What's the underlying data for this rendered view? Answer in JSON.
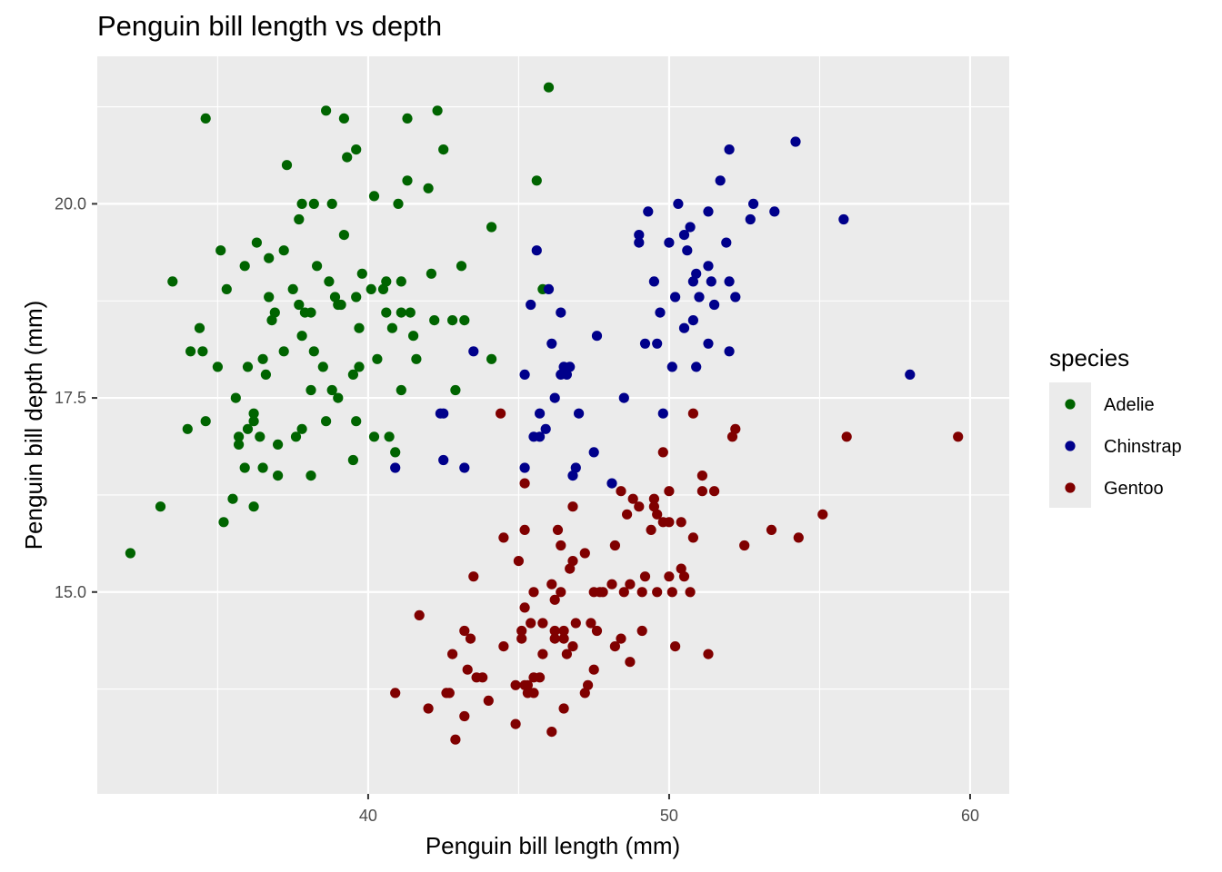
{
  "chart_data": {
    "type": "scatter",
    "title": "Penguin bill length vs depth",
    "xlabel": "Penguin bill length (mm)",
    "ylabel": "Penguin bill depth (mm)",
    "xlim": [
      31,
      61.3
    ],
    "ylim": [
      12.4,
      21.9
    ],
    "x_ticks": [
      40,
      50,
      60
    ],
    "x_tick_labels": [
      "40",
      "50",
      "60"
    ],
    "y_ticks": [
      15.0,
      17.5,
      20.0
    ],
    "y_tick_labels": [
      "15.0",
      "17.5",
      "20.0"
    ],
    "grid": true,
    "legend": {
      "title": "species",
      "placement": "right"
    },
    "series": [
      {
        "name": "Adelie",
        "color": "#006400",
        "points": [
          [
            32.1,
            15.5
          ],
          [
            33.1,
            16.1
          ],
          [
            33.5,
            19.0
          ],
          [
            34.0,
            17.1
          ],
          [
            34.1,
            18.1
          ],
          [
            34.4,
            18.4
          ],
          [
            34.5,
            18.1
          ],
          [
            34.6,
            21.1
          ],
          [
            34.6,
            17.2
          ],
          [
            35.0,
            17.9
          ],
          [
            35.1,
            19.4
          ],
          [
            35.2,
            15.9
          ],
          [
            35.3,
            18.9
          ],
          [
            35.5,
            16.2
          ],
          [
            35.6,
            17.5
          ],
          [
            35.7,
            17.0
          ],
          [
            35.7,
            16.9
          ],
          [
            35.9,
            16.6
          ],
          [
            35.9,
            19.2
          ],
          [
            36.0,
            17.9
          ],
          [
            36.0,
            17.1
          ],
          [
            36.2,
            16.1
          ],
          [
            36.2,
            17.2
          ],
          [
            36.2,
            17.3
          ],
          [
            36.3,
            19.5
          ],
          [
            36.4,
            17.0
          ],
          [
            36.5,
            18.0
          ],
          [
            36.5,
            16.6
          ],
          [
            36.6,
            17.8
          ],
          [
            36.7,
            18.8
          ],
          [
            36.7,
            19.3
          ],
          [
            36.8,
            18.5
          ],
          [
            36.9,
            18.6
          ],
          [
            37.0,
            16.9
          ],
          [
            37.0,
            16.5
          ],
          [
            37.2,
            18.1
          ],
          [
            37.2,
            19.4
          ],
          [
            37.3,
            20.5
          ],
          [
            37.5,
            18.9
          ],
          [
            37.6,
            17.0
          ],
          [
            37.7,
            18.7
          ],
          [
            37.7,
            19.8
          ],
          [
            37.8,
            17.1
          ],
          [
            37.8,
            18.3
          ],
          [
            37.8,
            20.0
          ],
          [
            37.9,
            18.6
          ],
          [
            38.1,
            18.6
          ],
          [
            38.1,
            17.6
          ],
          [
            38.1,
            16.5
          ],
          [
            38.2,
            20.0
          ],
          [
            38.2,
            18.1
          ],
          [
            38.3,
            19.2
          ],
          [
            38.5,
            17.9
          ],
          [
            38.6,
            21.2
          ],
          [
            38.6,
            17.2
          ],
          [
            38.7,
            19.0
          ],
          [
            38.8,
            20.0
          ],
          [
            38.8,
            17.6
          ],
          [
            38.9,
            18.8
          ],
          [
            39.0,
            17.5
          ],
          [
            39.0,
            18.7
          ],
          [
            39.1,
            18.7
          ],
          [
            39.2,
            19.6
          ],
          [
            39.2,
            21.1
          ],
          [
            39.3,
            20.6
          ],
          [
            39.5,
            16.7
          ],
          [
            39.5,
            17.8
          ],
          [
            39.6,
            20.7
          ],
          [
            39.6,
            18.8
          ],
          [
            39.6,
            17.2
          ],
          [
            39.7,
            18.4
          ],
          [
            39.7,
            17.9
          ],
          [
            39.8,
            19.1
          ],
          [
            40.1,
            18.9
          ],
          [
            40.2,
            17.0
          ],
          [
            40.2,
            20.1
          ],
          [
            40.3,
            18.0
          ],
          [
            40.5,
            18.9
          ],
          [
            40.6,
            19.0
          ],
          [
            40.6,
            18.6
          ],
          [
            40.7,
            17.0
          ],
          [
            40.8,
            18.4
          ],
          [
            40.9,
            16.8
          ],
          [
            41.0,
            20.0
          ],
          [
            41.1,
            19.0
          ],
          [
            41.1,
            18.6
          ],
          [
            41.1,
            17.6
          ],
          [
            41.3,
            20.3
          ],
          [
            41.3,
            21.1
          ],
          [
            41.4,
            18.6
          ],
          [
            41.5,
            18.3
          ],
          [
            41.6,
            18.0
          ],
          [
            42.0,
            20.2
          ],
          [
            42.1,
            19.1
          ],
          [
            42.2,
            18.5
          ],
          [
            42.3,
            21.2
          ],
          [
            42.5,
            20.7
          ],
          [
            42.8,
            18.5
          ],
          [
            42.9,
            17.6
          ],
          [
            43.1,
            19.2
          ],
          [
            43.2,
            18.5
          ],
          [
            44.1,
            19.7
          ],
          [
            44.1,
            18.0
          ],
          [
            45.6,
            20.3
          ],
          [
            46.0,
            21.5
          ],
          [
            45.8,
            18.9
          ]
        ]
      },
      {
        "name": "Chinstrap",
        "color": "#00008B",
        "points": [
          [
            40.9,
            16.6
          ],
          [
            42.4,
            17.3
          ],
          [
            42.5,
            16.7
          ],
          [
            42.5,
            17.3
          ],
          [
            43.2,
            16.6
          ],
          [
            43.5,
            18.1
          ],
          [
            45.2,
            17.8
          ],
          [
            45.2,
            16.6
          ],
          [
            45.4,
            18.7
          ],
          [
            45.5,
            17.0
          ],
          [
            45.6,
            19.4
          ],
          [
            45.7,
            17.3
          ],
          [
            45.7,
            17.0
          ],
          [
            45.9,
            17.1
          ],
          [
            46.0,
            18.9
          ],
          [
            46.1,
            18.2
          ],
          [
            46.2,
            17.5
          ],
          [
            46.4,
            18.6
          ],
          [
            46.4,
            17.8
          ],
          [
            46.5,
            17.9
          ],
          [
            46.6,
            17.8
          ],
          [
            46.7,
            17.9
          ],
          [
            46.8,
            16.5
          ],
          [
            46.9,
            16.6
          ],
          [
            47.0,
            17.3
          ],
          [
            47.5,
            16.8
          ],
          [
            47.6,
            18.3
          ],
          [
            48.1,
            16.4
          ],
          [
            48.5,
            17.5
          ],
          [
            49.0,
            19.5
          ],
          [
            49.0,
            19.6
          ],
          [
            49.2,
            18.2
          ],
          [
            49.3,
            19.9
          ],
          [
            49.5,
            19.0
          ],
          [
            49.6,
            18.2
          ],
          [
            49.7,
            18.6
          ],
          [
            49.8,
            17.3
          ],
          [
            50.0,
            19.5
          ],
          [
            50.1,
            17.9
          ],
          [
            50.2,
            18.8
          ],
          [
            50.3,
            20.0
          ],
          [
            50.5,
            18.4
          ],
          [
            50.5,
            19.6
          ],
          [
            50.6,
            19.4
          ],
          [
            50.7,
            19.7
          ],
          [
            50.8,
            18.5
          ],
          [
            50.8,
            19.0
          ],
          [
            50.9,
            19.1
          ],
          [
            50.9,
            17.9
          ],
          [
            51.0,
            18.8
          ],
          [
            51.3,
            18.2
          ],
          [
            51.3,
            19.2
          ],
          [
            51.3,
            19.9
          ],
          [
            51.4,
            19.0
          ],
          [
            51.5,
            18.7
          ],
          [
            51.7,
            20.3
          ],
          [
            51.9,
            19.5
          ],
          [
            52.0,
            18.1
          ],
          [
            52.0,
            19.0
          ],
          [
            52.0,
            20.7
          ],
          [
            52.2,
            18.8
          ],
          [
            52.7,
            19.8
          ],
          [
            52.8,
            20.0
          ],
          [
            53.5,
            19.9
          ],
          [
            54.2,
            20.8
          ],
          [
            55.8,
            19.8
          ],
          [
            58.0,
            17.8
          ]
        ]
      },
      {
        "name": "Gentoo",
        "color": "#800000",
        "points": [
          [
            40.9,
            13.7
          ],
          [
            41.7,
            14.7
          ],
          [
            42.0,
            13.5
          ],
          [
            42.6,
            13.7
          ],
          [
            42.7,
            13.7
          ],
          [
            42.8,
            14.2
          ],
          [
            42.9,
            13.1
          ],
          [
            43.2,
            14.5
          ],
          [
            43.2,
            13.4
          ],
          [
            43.3,
            14.0
          ],
          [
            43.4,
            14.4
          ],
          [
            43.5,
            15.2
          ],
          [
            43.6,
            13.9
          ],
          [
            43.8,
            13.9
          ],
          [
            44.0,
            13.6
          ],
          [
            44.4,
            17.3
          ],
          [
            44.5,
            15.7
          ],
          [
            44.5,
            14.3
          ],
          [
            44.9,
            13.3
          ],
          [
            44.9,
            13.8
          ],
          [
            45.0,
            15.4
          ],
          [
            45.1,
            14.5
          ],
          [
            45.1,
            14.4
          ],
          [
            45.2,
            13.8
          ],
          [
            45.2,
            15.8
          ],
          [
            45.2,
            16.4
          ],
          [
            45.2,
            14.8
          ],
          [
            45.3,
            13.7
          ],
          [
            45.3,
            13.8
          ],
          [
            45.4,
            14.6
          ],
          [
            45.5,
            13.9
          ],
          [
            45.5,
            13.7
          ],
          [
            45.5,
            15.0
          ],
          [
            45.7,
            13.9
          ],
          [
            45.8,
            14.6
          ],
          [
            45.8,
            14.2
          ],
          [
            46.1,
            13.2
          ],
          [
            46.1,
            15.1
          ],
          [
            46.2,
            14.5
          ],
          [
            46.2,
            14.9
          ],
          [
            46.2,
            14.4
          ],
          [
            46.3,
            15.8
          ],
          [
            46.4,
            15.6
          ],
          [
            46.4,
            15.0
          ],
          [
            46.5,
            14.5
          ],
          [
            46.5,
            14.4
          ],
          [
            46.5,
            13.5
          ],
          [
            46.6,
            14.2
          ],
          [
            46.7,
            15.3
          ],
          [
            46.8,
            14.3
          ],
          [
            46.8,
            15.4
          ],
          [
            46.8,
            16.1
          ],
          [
            46.9,
            14.6
          ],
          [
            47.2,
            13.7
          ],
          [
            47.2,
            15.5
          ],
          [
            47.3,
            13.8
          ],
          [
            47.4,
            14.6
          ],
          [
            47.5,
            14.0
          ],
          [
            47.5,
            15.0
          ],
          [
            47.6,
            14.5
          ],
          [
            47.7,
            15.0
          ],
          [
            47.8,
            15.0
          ],
          [
            48.1,
            15.1
          ],
          [
            48.2,
            14.3
          ],
          [
            48.2,
            15.6
          ],
          [
            48.4,
            14.4
          ],
          [
            48.4,
            16.3
          ],
          [
            48.5,
            15.0
          ],
          [
            48.6,
            16.0
          ],
          [
            48.7,
            14.1
          ],
          [
            48.7,
            15.1
          ],
          [
            48.8,
            16.2
          ],
          [
            49.0,
            16.1
          ],
          [
            49.1,
            14.5
          ],
          [
            49.1,
            15.0
          ],
          [
            49.2,
            15.2
          ],
          [
            49.4,
            15.8
          ],
          [
            49.5,
            16.2
          ],
          [
            49.5,
            16.1
          ],
          [
            49.6,
            16.0
          ],
          [
            49.6,
            15.0
          ],
          [
            49.8,
            15.9
          ],
          [
            49.8,
            16.8
          ],
          [
            50.0,
            15.2
          ],
          [
            50.0,
            15.9
          ],
          [
            50.0,
            16.3
          ],
          [
            50.1,
            15.0
          ],
          [
            50.2,
            14.3
          ],
          [
            50.4,
            15.3
          ],
          [
            50.4,
            15.9
          ],
          [
            50.5,
            15.2
          ],
          [
            50.7,
            15.0
          ],
          [
            50.8,
            15.7
          ],
          [
            50.8,
            17.3
          ],
          [
            51.1,
            16.3
          ],
          [
            51.1,
            16.5
          ],
          [
            51.3,
            14.2
          ],
          [
            51.5,
            16.3
          ],
          [
            52.1,
            17.0
          ],
          [
            52.2,
            17.1
          ],
          [
            52.5,
            15.6
          ],
          [
            53.4,
            15.8
          ],
          [
            54.3,
            15.7
          ],
          [
            55.1,
            16.0
          ],
          [
            55.9,
            17.0
          ],
          [
            59.6,
            17.0
          ]
        ]
      }
    ]
  }
}
